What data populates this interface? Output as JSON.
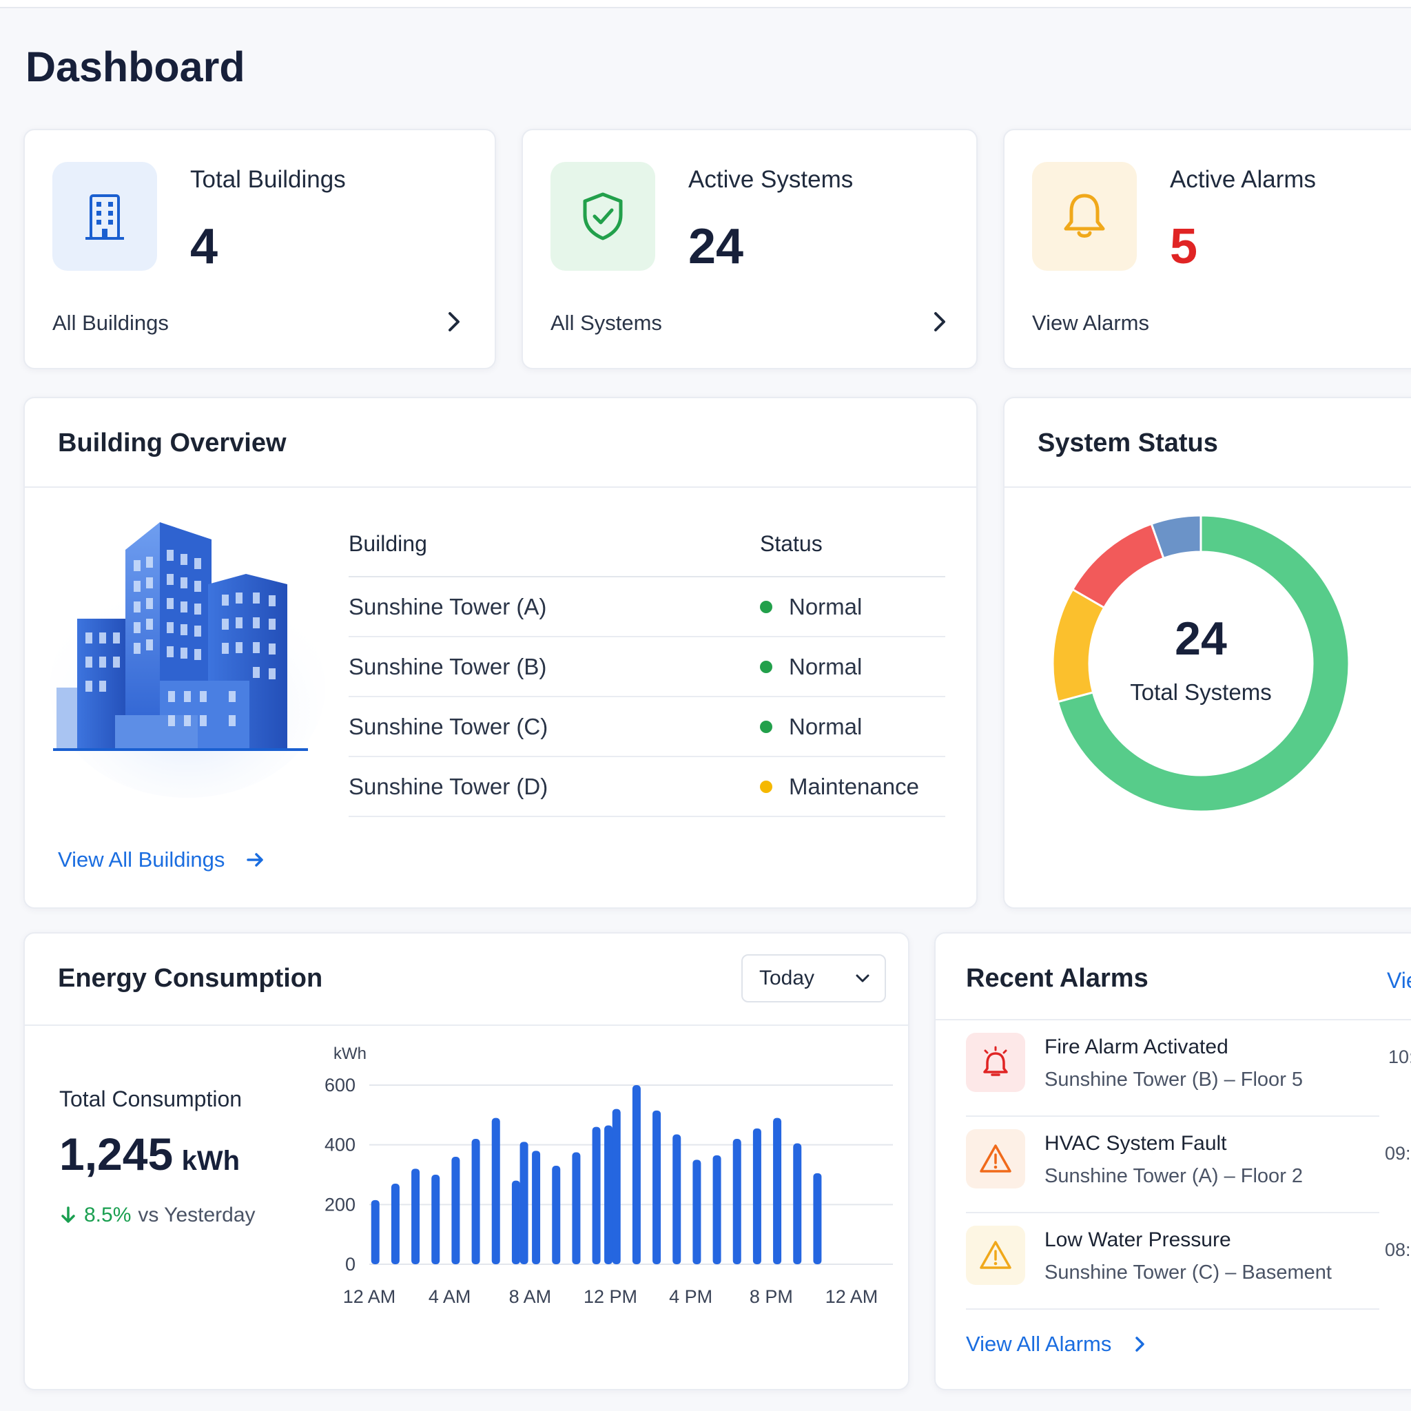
{
  "page": {
    "title": "Dashboard"
  },
  "stats": [
    {
      "label": "Total Buildings",
      "value": "4",
      "link": "All Buildings",
      "icon": "building-icon",
      "value_color": "#17203a",
      "icon_bg": "#e8f0fc",
      "icon_color": "#1a5fd0"
    },
    {
      "label": "Active Systems",
      "value": "24",
      "link": "All Systems",
      "icon": "shield-check-icon",
      "value_color": "#17203a",
      "icon_bg": "#e6f6ea",
      "icon_color": "#22a04b"
    },
    {
      "label": "Active Alarms",
      "value": "5",
      "link": "View Alarms",
      "icon": "bell-icon",
      "value_color": "#e02424",
      "icon_bg": "#fdf3e0",
      "icon_color": "#f0a81a"
    }
  ],
  "building_overview": {
    "title": "Building Overview",
    "columns": [
      "Building",
      "Status"
    ],
    "rows": [
      {
        "building": "Sunshine Tower (A)",
        "status": "Normal",
        "status_color": "#22a04b"
      },
      {
        "building": "Sunshine Tower (B)",
        "status": "Normal",
        "status_color": "#22a04b"
      },
      {
        "building": "Sunshine Tower (C)",
        "status": "Normal",
        "status_color": "#22a04b"
      },
      {
        "building": "Sunshine Tower (D)",
        "status": "Maintenance",
        "status_color": "#f5b800"
      }
    ],
    "view_all": "View All Buildings"
  },
  "system_status": {
    "title": "System Status",
    "total": "24",
    "total_label": "Total Systems",
    "segments": [
      {
        "value": 17,
        "color": "#57cc8a"
      },
      {
        "value": 3,
        "color": "#fbc02d"
      },
      {
        "value": 2.7,
        "color": "#f25a5a"
      },
      {
        "value": 1.3,
        "color": "#6b93c8"
      }
    ]
  },
  "energy": {
    "title": "Energy Consumption",
    "period": "Today",
    "total_label": "Total Consumption",
    "total_value": "1,245",
    "total_unit": "kWh",
    "change": "8.5%",
    "change_suffix": "vs Yesterday",
    "accent": "#1a9f50"
  },
  "chart_data": {
    "type": "bar",
    "ylabel": "kWh",
    "ylim": [
      0,
      600
    ],
    "yticks": [
      0,
      200,
      400,
      600
    ],
    "xticks": [
      "12 AM",
      "4 AM",
      "8 AM",
      "12 PM",
      "4 PM",
      "8 PM",
      "12 AM"
    ],
    "x_hours": [
      0.3,
      1.3,
      2.3,
      3.3,
      4.3,
      5.3,
      6.3,
      7.3,
      7.7,
      8.3,
      9.3,
      10.3,
      11.3,
      11.9,
      12.3,
      13.3,
      14.3,
      15.3,
      16.3,
      17.3,
      18.3,
      19.3,
      20.3,
      21.3,
      22.3
    ],
    "values": [
      215,
      270,
      320,
      300,
      360,
      420,
      490,
      280,
      410,
      380,
      330,
      375,
      460,
      465,
      520,
      600,
      515,
      435,
      350,
      365,
      420,
      455,
      490,
      405,
      305
    ],
    "color": "#2566e0"
  },
  "recent_alarms": {
    "title": "Recent Alarms",
    "view_link": "Vie",
    "items": [
      {
        "title": "Fire Alarm Activated",
        "location": "Sunshine Tower (B) – Floor 5",
        "time": "10:",
        "icon": "fire-alarm-icon",
        "color": "#e02424",
        "bg": "#fde8e8"
      },
      {
        "title": "HVAC System Fault",
        "location": "Sunshine Tower (A) – Floor 2",
        "time": "09:",
        "icon": "warning-icon",
        "color": "#f06a1a",
        "bg": "#fdf0e6"
      },
      {
        "title": "Low Water Pressure",
        "location": "Sunshine Tower (C) – Basement",
        "time": "08:",
        "icon": "warning-icon",
        "color": "#f0a81a",
        "bg": "#fdf6e3"
      }
    ],
    "view_all": "View All Alarms"
  }
}
